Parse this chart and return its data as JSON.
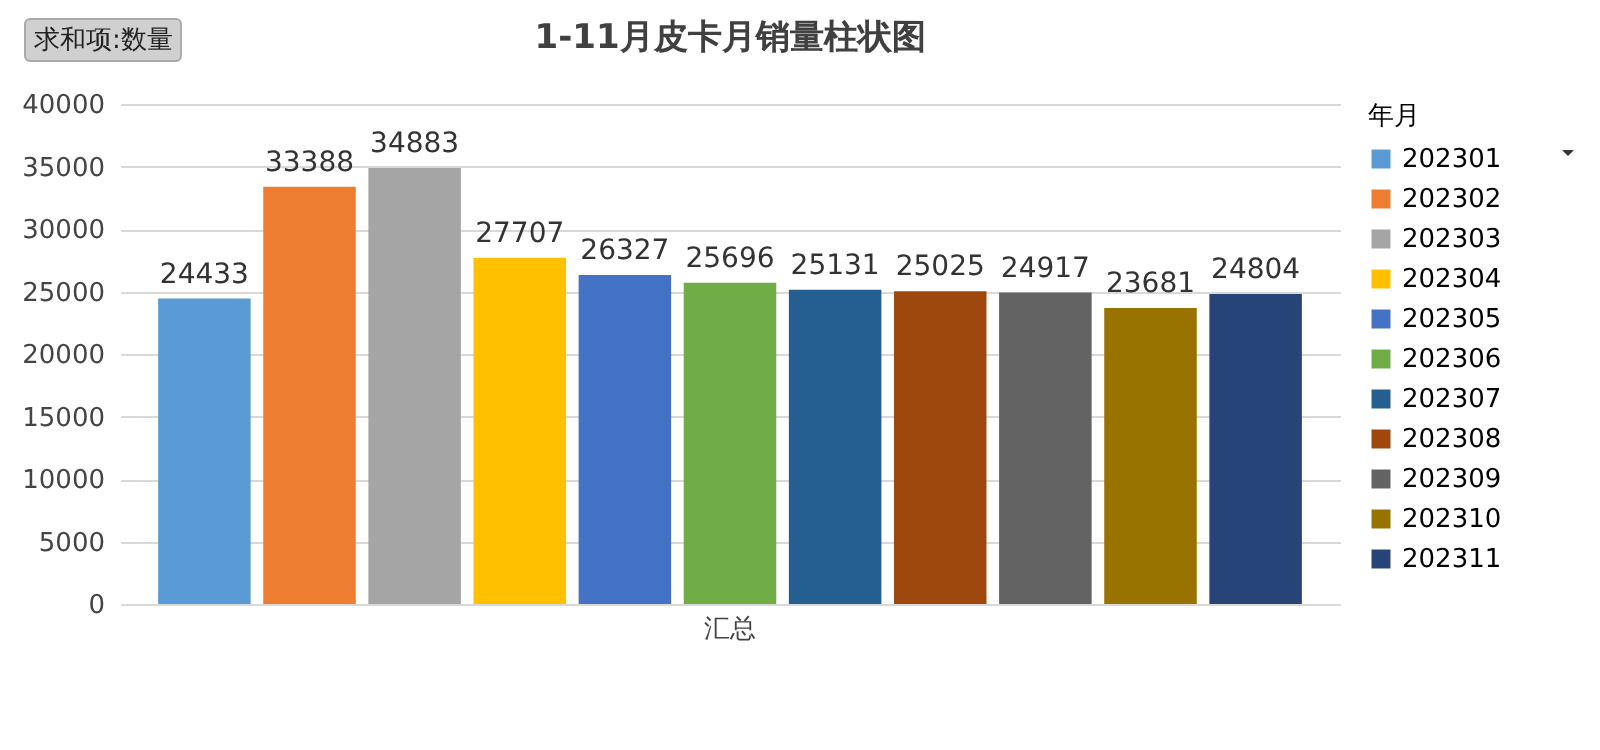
{
  "chart_data": {
    "type": "bar",
    "title": "1-11月皮卡月销量柱状图",
    "xlabel": null,
    "ylabel": "求和项:数量",
    "legend_title": "年月",
    "categories": [
      "汇总"
    ],
    "series": [
      {
        "name": "202301",
        "color": "#5b9bd5",
        "values": [
          24433
        ]
      },
      {
        "name": "202302",
        "color": "#ed7d31",
        "values": [
          33388
        ]
      },
      {
        "name": "202303",
        "color": "#a5a5a5",
        "values": [
          34883
        ]
      },
      {
        "name": "202304",
        "color": "#ffc000",
        "values": [
          27707
        ]
      },
      {
        "name": "202305",
        "color": "#4472c4",
        "values": [
          26327
        ]
      },
      {
        "name": "202306",
        "color": "#70ad47",
        "values": [
          25696
        ]
      },
      {
        "name": "202307",
        "color": "#255e91",
        "values": [
          25131
        ]
      },
      {
        "name": "202308",
        "color": "#9e480e",
        "values": [
          25025
        ]
      },
      {
        "name": "202309",
        "color": "#636363",
        "values": [
          24917
        ]
      },
      {
        "name": "202310",
        "color": "#997300",
        "values": [
          23681
        ]
      },
      {
        "name": "202311",
        "color": "#264478",
        "values": [
          24804
        ]
      }
    ],
    "ylim": [
      0,
      40000
    ],
    "yticks": [
      0,
      5000,
      10000,
      15000,
      20000,
      25000,
      30000,
      35000,
      40000
    ],
    "grid": "y",
    "legend": "right",
    "data_labels": true
  }
}
